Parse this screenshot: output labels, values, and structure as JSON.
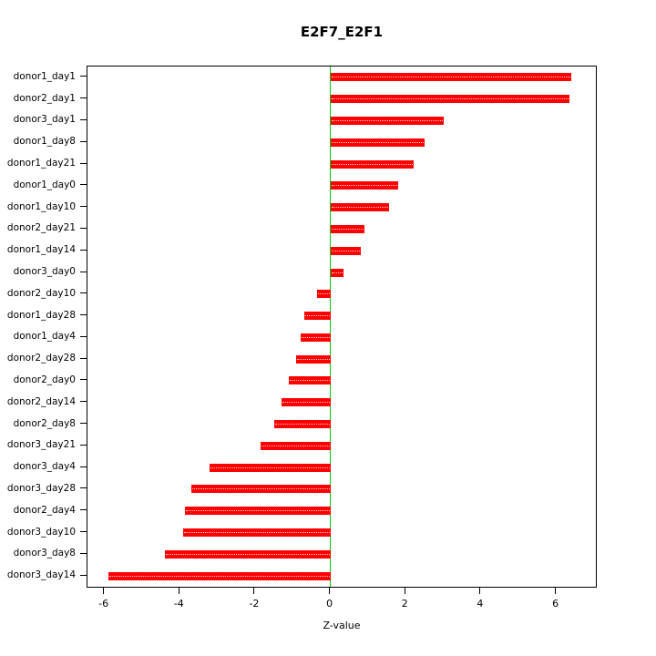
{
  "chart": {
    "title": "E2F7_E2F1",
    "xlabel": "Z-value"
  },
  "chart_data": {
    "type": "bar",
    "orientation": "horizontal",
    "title": "E2F7_E2F1",
    "xlabel": "Z-value",
    "ylabel": "",
    "categories": [
      "donor1_day1",
      "donor2_day1",
      "donor3_day1",
      "donor1_day8",
      "donor1_day21",
      "donor1_day0",
      "donor1_day10",
      "donor2_day21",
      "donor1_day14",
      "donor3_day0",
      "donor2_day10",
      "donor1_day28",
      "donor1_day4",
      "donor2_day28",
      "donor2_day0",
      "donor2_day14",
      "donor2_day8",
      "donor3_day21",
      "donor3_day4",
      "donor3_day28",
      "donor2_day4",
      "donor3_day10",
      "donor3_day8",
      "donor3_day14"
    ],
    "values": [
      6.4,
      6.35,
      3.0,
      2.5,
      2.2,
      1.8,
      1.55,
      0.9,
      0.8,
      0.35,
      -0.35,
      -0.7,
      -0.8,
      -0.9,
      -1.1,
      -1.3,
      -1.5,
      -1.85,
      -3.2,
      -3.7,
      -3.85,
      -3.9,
      -4.4,
      -5.9
    ],
    "xlim": [
      -6.45,
      7.05
    ],
    "xticks": [
      -6,
      -4,
      -2,
      0,
      2,
      4,
      6
    ],
    "bar_color": "#FF0000",
    "zero_line_color": "#00CC00",
    "grid": false,
    "legend": false
  }
}
